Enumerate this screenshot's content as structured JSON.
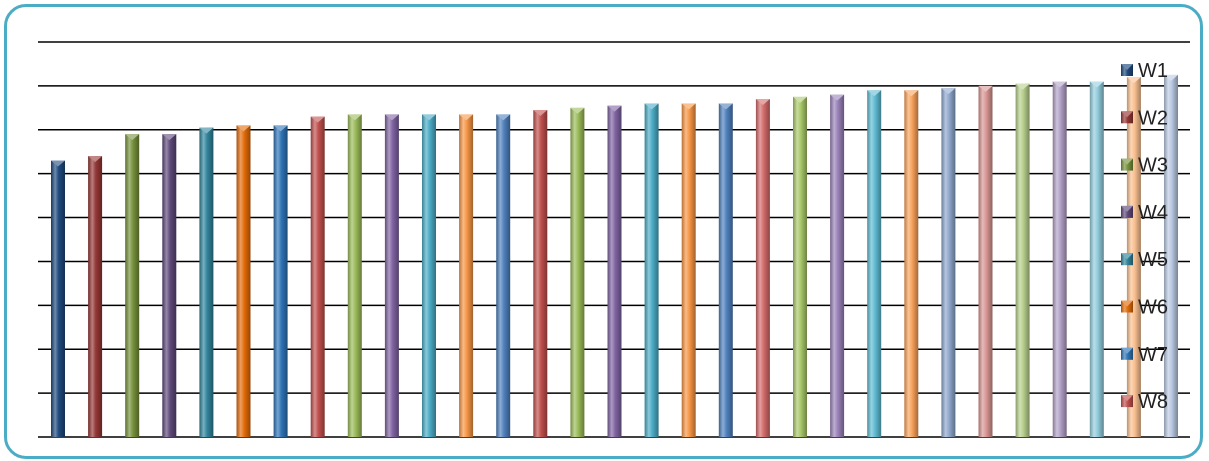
{
  "chart_data": {
    "type": "bar",
    "title": "",
    "xlabel": "",
    "ylabel": "",
    "ylim": [
      0,
      9
    ],
    "gridlines": true,
    "legend_position": "right",
    "legend": [
      "W1",
      "W2",
      "W3",
      "W4",
      "W5",
      "W6",
      "W7",
      "W8"
    ],
    "legend_colors": [
      "#1f497d",
      "#953735",
      "#76923c",
      "#5f497a",
      "#31859c",
      "#e36c09",
      "#2e75b6",
      "#c0504d"
    ],
    "bars": [
      {
        "value": 6.3,
        "color": "#1f497d"
      },
      {
        "value": 6.4,
        "color": "#953735"
      },
      {
        "value": 6.9,
        "color": "#76923c"
      },
      {
        "value": 6.9,
        "color": "#5f497a"
      },
      {
        "value": 7.05,
        "color": "#31859c"
      },
      {
        "value": 7.1,
        "color": "#e36c09"
      },
      {
        "value": 7.1,
        "color": "#2e75b6"
      },
      {
        "value": 7.3,
        "color": "#c0504d"
      },
      {
        "value": 7.35,
        "color": "#9bbb59"
      },
      {
        "value": 7.35,
        "color": "#8064a2"
      },
      {
        "value": 7.35,
        "color": "#4bacc6"
      },
      {
        "value": 7.35,
        "color": "#f79646"
      },
      {
        "value": 7.35,
        "color": "#4f81bd"
      },
      {
        "value": 7.45,
        "color": "#c0504d"
      },
      {
        "value": 7.5,
        "color": "#9bbb59"
      },
      {
        "value": 7.55,
        "color": "#8064a2"
      },
      {
        "value": 7.6,
        "color": "#4bacc6"
      },
      {
        "value": 7.6,
        "color": "#f79646"
      },
      {
        "value": 7.6,
        "color": "#4f81bd"
      },
      {
        "value": 7.7,
        "color": "#d46b6b"
      },
      {
        "value": 7.75,
        "color": "#a9c86a"
      },
      {
        "value": 7.8,
        "color": "#9a82b9"
      },
      {
        "value": 7.9,
        "color": "#5fbcd3"
      },
      {
        "value": 7.9,
        "color": "#f9a35c"
      },
      {
        "value": 7.95,
        "color": "#8fa8cd"
      },
      {
        "value": 8.0,
        "color": "#d99694"
      },
      {
        "value": 8.05,
        "color": "#b7cf8d"
      },
      {
        "value": 8.1,
        "color": "#b2a1c7"
      },
      {
        "value": 8.1,
        "color": "#93cddd"
      },
      {
        "value": 8.2,
        "color": "#fac090"
      },
      {
        "value": 8.25,
        "color": "#b9c9e2"
      }
    ]
  }
}
